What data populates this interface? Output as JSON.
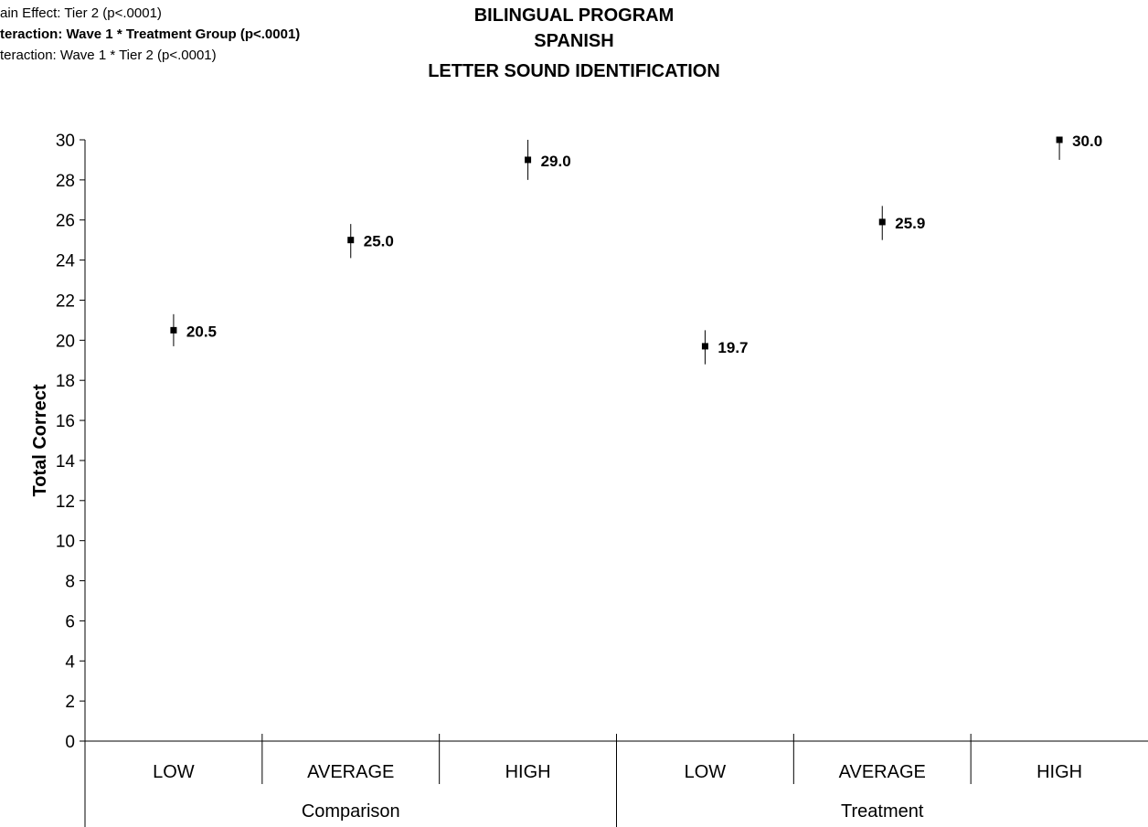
{
  "stats_notes": [
    {
      "text": "ain Effect: Tier 2 (p<.0001)",
      "bold": false
    },
    {
      "text": "teraction:  Wave 1 * Treatment Group  (p<.0001)",
      "bold": true
    },
    {
      "text": "teraction:  Wave 1 * Tier 2 (p<.0001)",
      "bold": false
    }
  ],
  "chart_data": {
    "type": "scatter",
    "title": [
      "BILINGUAL PROGRAM",
      "SPANISH",
      "LETTER SOUND IDENTIFICATION"
    ],
    "ylabel": "Total Correct",
    "xlabel": "",
    "ylim": [
      0,
      30
    ],
    "yticks": [
      0,
      2,
      4,
      6,
      8,
      10,
      12,
      14,
      16,
      18,
      20,
      22,
      24,
      26,
      28,
      30
    ],
    "groups": [
      "Comparison",
      "Treatment"
    ],
    "categories": [
      "LOW",
      "AVERAGE",
      "HIGH",
      "LOW",
      "AVERAGE",
      "HIGH"
    ],
    "points": [
      {
        "group": "Comparison",
        "category": "LOW",
        "value": 20.5,
        "label": "20.5",
        "err_low": 19.7,
        "err_high": 21.3
      },
      {
        "group": "Comparison",
        "category": "AVERAGE",
        "value": 25.0,
        "label": "25.0",
        "err_low": 24.1,
        "err_high": 25.8
      },
      {
        "group": "Comparison",
        "category": "HIGH",
        "value": 29.0,
        "label": "29.0",
        "err_low": 28.0,
        "err_high": 30.0
      },
      {
        "group": "Treatment",
        "category": "LOW",
        "value": 19.7,
        "label": "19.7",
        "err_low": 18.8,
        "err_high": 20.5
      },
      {
        "group": "Treatment",
        "category": "AVERAGE",
        "value": 25.9,
        "label": "25.9",
        "err_low": 25.0,
        "err_high": 26.7
      },
      {
        "group": "Treatment",
        "category": "HIGH",
        "value": 30.0,
        "label": "30.0",
        "err_low": 29.0,
        "err_high": 30.0
      }
    ],
    "grid": false,
    "legend": "none"
  }
}
